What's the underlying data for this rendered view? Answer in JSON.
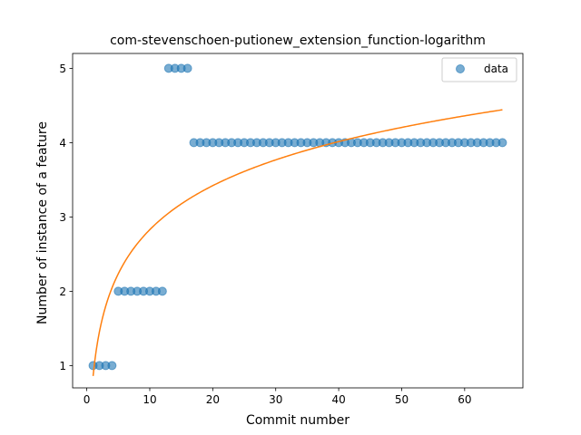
{
  "chart_data": {
    "type": "scatter",
    "title": "com-stevenschoen-putionew_extension_function-logarithm",
    "xlabel": "Commit number",
    "ylabel": "Number of instance of a feature",
    "xlim": [
      -2.25,
      69.25
    ],
    "ylim": [
      0.7,
      5.2
    ],
    "xticks": [
      0,
      10,
      20,
      30,
      40,
      50,
      60
    ],
    "yticks": [
      1,
      2,
      3,
      4,
      5
    ],
    "xtick_labels": [
      "0",
      "10",
      "20",
      "30",
      "40",
      "50",
      "60"
    ],
    "ytick_labels": [
      "1",
      "2",
      "3",
      "4",
      "5"
    ],
    "grid": false,
    "legend": {
      "position": "top-right",
      "entries": [
        "data"
      ]
    },
    "series": [
      {
        "name": "data",
        "kind": "scatter",
        "color": "#1f77b4",
        "x": [
          1,
          2,
          3,
          4,
          5,
          6,
          7,
          8,
          9,
          10,
          11,
          12,
          13,
          14,
          15,
          16,
          17,
          18,
          19,
          20,
          21,
          22,
          23,
          24,
          25,
          26,
          27,
          28,
          29,
          30,
          31,
          32,
          33,
          34,
          35,
          36,
          37,
          38,
          39,
          40,
          41,
          42,
          43,
          44,
          45,
          46,
          47,
          48,
          49,
          50,
          51,
          52,
          53,
          54,
          55,
          56,
          57,
          58,
          59,
          60,
          61,
          62,
          63,
          64,
          65,
          66
        ],
        "y": [
          1,
          1,
          1,
          1,
          2,
          2,
          2,
          2,
          2,
          2,
          2,
          2,
          5,
          5,
          5,
          5,
          4,
          4,
          4,
          4,
          4,
          4,
          4,
          4,
          4,
          4,
          4,
          4,
          4,
          4,
          4,
          4,
          4,
          4,
          4,
          4,
          4,
          4,
          4,
          4,
          4,
          4,
          4,
          4,
          4,
          4,
          4,
          4,
          4,
          4,
          4,
          4,
          4,
          4,
          4,
          4,
          4,
          4,
          4,
          4,
          4,
          4,
          4,
          4,
          4,
          4
        ]
      },
      {
        "kind": "line",
        "color": "#ff7f0e",
        "model": "logarithmic",
        "x_range": [
          1,
          66
        ],
        "fit": {
          "a": 0.86,
          "b": 0.855
        }
      }
    ]
  }
}
